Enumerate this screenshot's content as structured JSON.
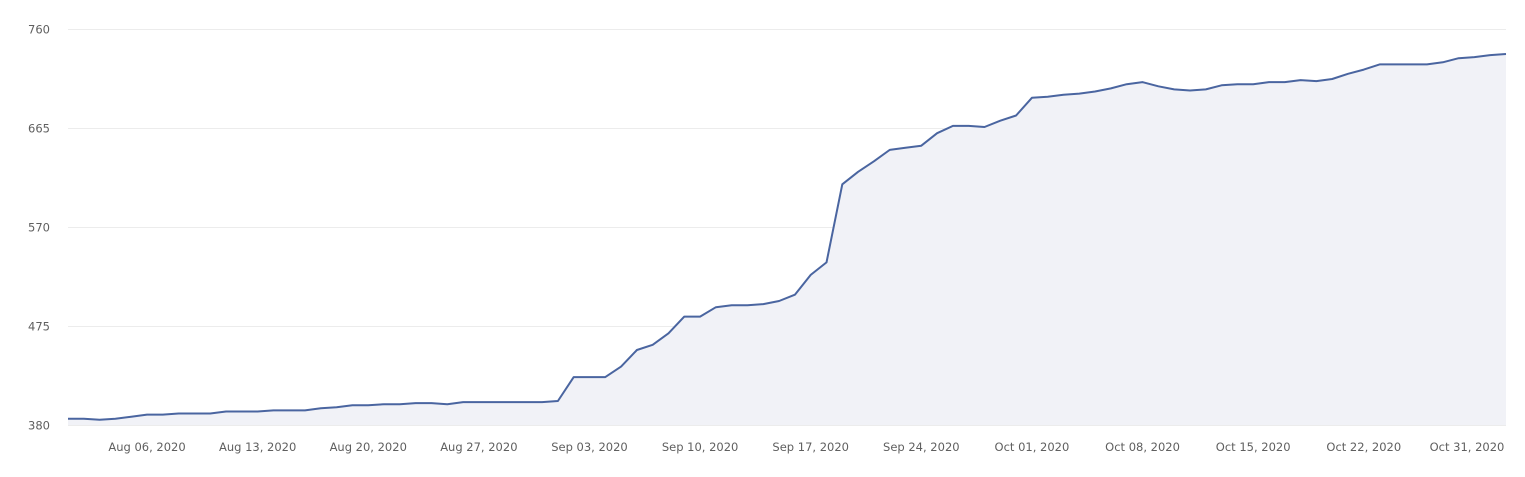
{
  "chart_data": {
    "type": "area",
    "title": "",
    "xlabel": "",
    "ylabel": "",
    "ylim": [
      380,
      760
    ],
    "yticks": [
      380,
      475,
      570,
      665,
      760
    ],
    "grid": true,
    "legend": null,
    "colors": {
      "line": "#4a65a0",
      "fill": "#f1f2f7",
      "grid": "#ececec",
      "tick_text": "#5f5f5f"
    },
    "xtick_labels": [
      {
        "label": "Aug 06, 2020",
        "index": 5
      },
      {
        "label": "Aug 13, 2020",
        "index": 12
      },
      {
        "label": "Aug 20, 2020",
        "index": 19
      },
      {
        "label": "Aug 27, 2020",
        "index": 26
      },
      {
        "label": "Sep 03, 2020",
        "index": 33
      },
      {
        "label": "Sep 10, 2020",
        "index": 40
      },
      {
        "label": "Sep 17, 2020",
        "index": 47
      },
      {
        "label": "Sep 24, 2020",
        "index": 54
      },
      {
        "label": "Oct 01, 2020",
        "index": 61
      },
      {
        "label": "Oct 08, 2020",
        "index": 68
      },
      {
        "label": "Oct 15, 2020",
        "index": 75
      },
      {
        "label": "Oct 22, 2020",
        "index": 82
      },
      {
        "label": "Oct 31, 2020",
        "index": 91
      }
    ],
    "x_start": "Aug 01, 2020",
    "x_end": "Oct 31, 2020",
    "values": [
      386,
      386,
      385,
      386,
      388,
      390,
      390,
      391,
      391,
      391,
      393,
      393,
      393,
      394,
      394,
      394,
      396,
      397,
      399,
      399,
      400,
      400,
      401,
      401,
      400,
      402,
      402,
      402,
      402,
      402,
      402,
      403,
      426,
      426,
      426,
      436,
      452,
      457,
      468,
      484,
      484,
      493,
      495,
      495,
      496,
      499,
      505,
      524,
      536,
      611,
      623,
      633,
      644,
      646,
      648,
      660,
      667,
      667,
      666,
      672,
      677,
      694,
      695,
      697,
      698,
      700,
      703,
      707,
      709,
      705,
      702,
      701,
      702,
      706,
      707,
      707,
      709,
      709,
      711,
      710,
      712,
      717,
      721,
      726,
      726,
      726,
      726,
      728,
      732,
      733,
      735,
      736
    ]
  }
}
